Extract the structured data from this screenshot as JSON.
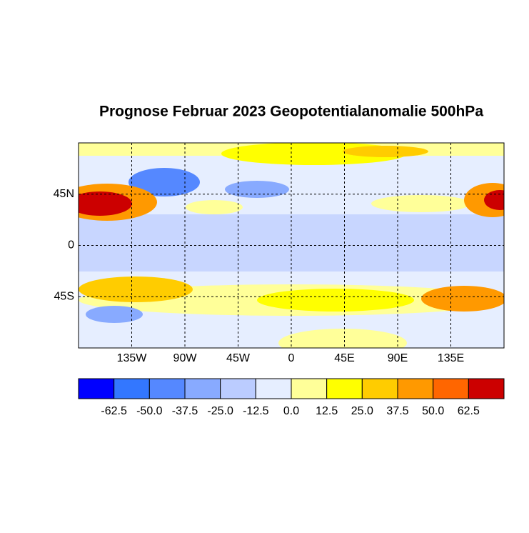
{
  "chart_data": {
    "type": "map",
    "title": "Prognose Februar 2023 Geopotentialanomalie 500hPa",
    "xlim": [
      -180,
      180
    ],
    "ylim": [
      -90,
      90
    ],
    "xticks": [
      {
        "value": -135,
        "label": "135W"
      },
      {
        "value": -90,
        "label": "90W"
      },
      {
        "value": -45,
        "label": "45W"
      },
      0,
      {
        "value": 45,
        "label": "45E"
      },
      {
        "value": 90,
        "label": "90E"
      },
      {
        "value": 135,
        "label": "135E"
      }
    ],
    "yticks": [
      {
        "value": -45,
        "label": "45S"
      },
      0,
      {
        "value": 45,
        "label": "45N"
      }
    ],
    "grid": true,
    "colorbar": {
      "levels": [
        -62.5,
        {
          "value": -50,
          "label": "-50.0"
        },
        {
          "value": -37.5,
          "label": "-37.5"
        },
        {
          "value": -25,
          "label": "-25.0"
        },
        -12.5,
        {
          "value": 0,
          "label": "0.0"
        },
        12.5,
        {
          "value": 25,
          "label": "25.0"
        },
        37.5,
        {
          "value": 50,
          "label": "50.0"
        },
        62.5
      ],
      "colors": [
        "#0000ff",
        "#3377ff",
        "#5588ff",
        "#88aaff",
        "#bbccff",
        "#e6eeff",
        "#ffff99",
        "#ffff00",
        "#ffcc00",
        "#ff9900",
        "#ff6600",
        "#cc0000"
      ]
    }
  }
}
